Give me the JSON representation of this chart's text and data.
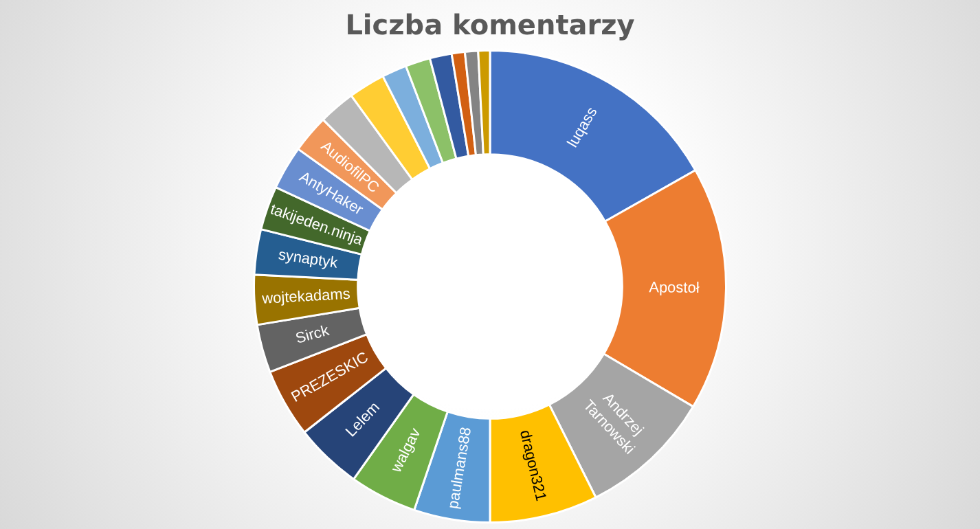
{
  "chart_data": {
    "type": "donut",
    "title": "Liczba komentarzy",
    "categories": [
      "luqass",
      "Apostoł",
      "Andrzej Tarnowski",
      "dragon321",
      "paulmans88",
      "walgav",
      "Lelem",
      "PREZESKIC",
      "Sirck",
      "wojtekadams",
      "synaptyk",
      "takijeden.ninja",
      "AntyHaker",
      "AudiofilPC",
      null,
      null,
      null,
      null,
      null,
      null,
      null,
      null
    ],
    "values": [
      16.8,
      16.7,
      9.1,
      7.4,
      5.2,
      4.6,
      4.6,
      4.7,
      3.3,
      3.4,
      3.1,
      3.0,
      3.0,
      2.6,
      2.5,
      2.5,
      1.7,
      1.7,
      1.5,
      0.9,
      0.9,
      0.8
    ],
    "colors": [
      "#4472c4",
      "#ed7d31",
      "#a5a5a5",
      "#ffc000",
      "#5b9bd5",
      "#70ad47",
      "#264478",
      "#9e480e",
      "#636363",
      "#997300",
      "#255e91",
      "#43682b",
      "#698ed0",
      "#f1975a",
      "#b7b7b7",
      "#ffcd33",
      "#7cafdd",
      "#8cc168",
      "#335aa1",
      "#d26012",
      "#848484",
      "#cc9a00"
    ],
    "legend": false
  }
}
